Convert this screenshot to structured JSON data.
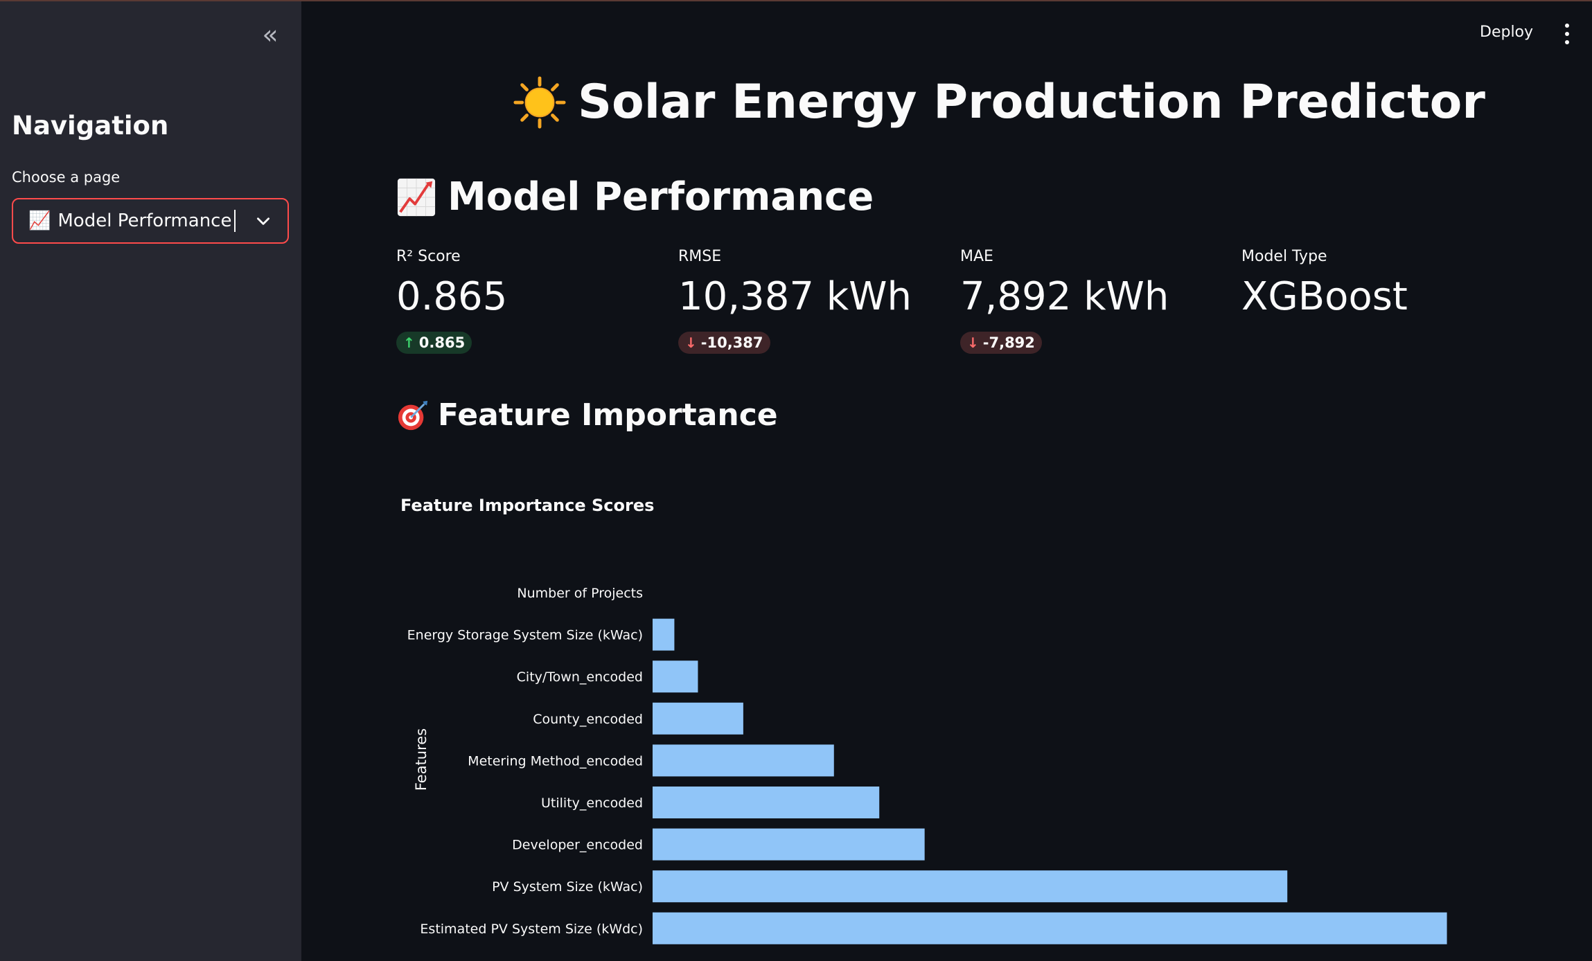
{
  "sidebar": {
    "nav_title": "Navigation",
    "select_label": "Choose a page",
    "selected_page": "Model Performance",
    "selected_emoji": "📈"
  },
  "header": {
    "deploy_label": "Deploy"
  },
  "main": {
    "title": "Solar Energy Production Predictor",
    "performance_title": "Model Performance",
    "feature_title": "Feature Importance",
    "metrics": [
      {
        "label": "R² Score",
        "value": "0.865",
        "delta": "0.865",
        "direction": "up"
      },
      {
        "label": "RMSE",
        "value": "10,387 kWh",
        "delta": "-10,387",
        "direction": "down"
      },
      {
        "label": "MAE",
        "value": "7,892 kWh",
        "delta": "-7,892",
        "direction": "down"
      },
      {
        "label": "Model Type",
        "value": "XGBoost"
      }
    ]
  },
  "colors": {
    "accent": "#ff4b4b",
    "bar": "#90c5f8",
    "sidebar_bg": "#262730",
    "main_bg": "#0e1117"
  },
  "chart_data": {
    "type": "bar",
    "orientation": "horizontal",
    "title": "Feature Importance Scores",
    "xlabel": "",
    "ylabel": "Features",
    "categories": [
      "Number of Projects",
      "Energy Storage System Size (kWac)",
      "City/Town_encoded",
      "County_encoded",
      "Metering Method_encoded",
      "Utility_encoded",
      "Developer_encoded",
      "PV System Size (kWac)",
      "Estimated PV System Size (kWdc)"
    ],
    "values": [
      0,
      0.012,
      0.025,
      0.05,
      0.1,
      0.125,
      0.15,
      0.35,
      0.438
    ],
    "xlim": [
      0,
      0.45
    ],
    "grid": false
  }
}
